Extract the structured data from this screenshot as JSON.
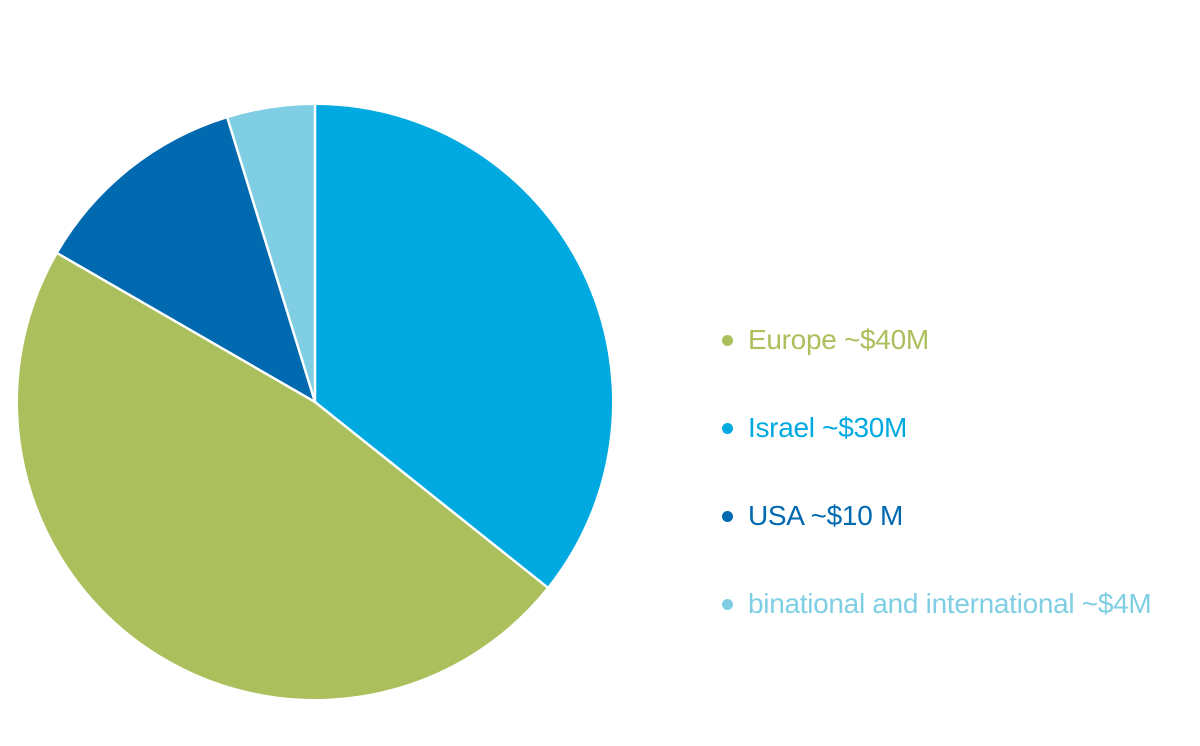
{
  "page": {
    "background": "#ffffff"
  },
  "chart_data": {
    "type": "pie",
    "title": "",
    "series": [
      {
        "name": "Europe",
        "value": 40,
        "legend_label": "Europe ~$40M",
        "color": "#abbf5c"
      },
      {
        "name": "Israel",
        "value": 30,
        "legend_label": "Israel ~$30M",
        "color": "#00a9e0"
      },
      {
        "name": "USA",
        "value": 10,
        "legend_label": "USA ~$10 M",
        "color": "#0069af"
      },
      {
        "name": "binational and international",
        "value": 4,
        "legend_label": "binational and international ~$4M",
        "color": "#7fcee4"
      }
    ],
    "draw_order": [
      1,
      0,
      2,
      3
    ],
    "start_angle_deg": 0,
    "direction": "clockwise",
    "separator_color": "#ffffff",
    "legend_position": "right",
    "grid": false
  }
}
